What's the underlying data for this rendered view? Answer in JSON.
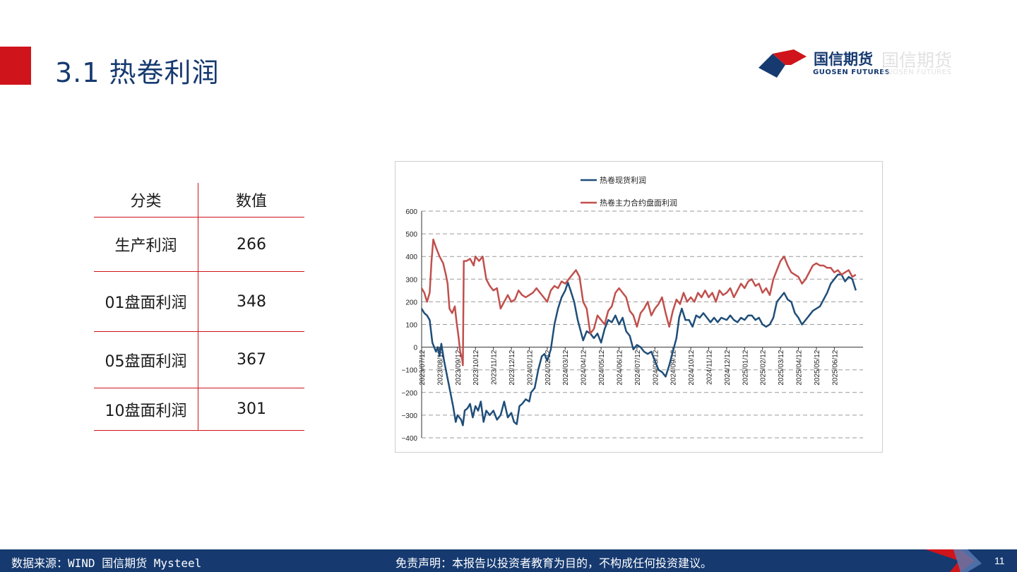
{
  "header": {
    "title": "3.1 热卷利润",
    "logo_cn": "国信期货",
    "logo_en": "GUOSEN FUTURES",
    "brand_red": "#d0141b",
    "brand_blue": "#163a70"
  },
  "table": {
    "headers": [
      "分类",
      "数值"
    ],
    "rows": [
      {
        "label": "生产利润",
        "value": "266"
      },
      {
        "label": "01盘面利润",
        "value": "348"
      },
      {
        "label": "05盘面利润",
        "value": "367"
      },
      {
        "label": "10盘面利润",
        "value": "301"
      }
    ]
  },
  "chart_data": {
    "type": "line",
    "title": "",
    "ylim": [
      -400,
      600
    ],
    "yticks": [
      600,
      500,
      400,
      300,
      200,
      100,
      0,
      -100,
      -200,
      -300,
      -400
    ],
    "ytick_labels": [
      "600",
      "500",
      "400",
      "300",
      "200",
      "100",
      "0",
      "−100",
      "−200",
      "−300",
      "−400"
    ],
    "x_labels": [
      "2023/07/12",
      "2023/08/12",
      "2023/09/12",
      "2023/10/12",
      "2023/11/12",
      "2023/12/12",
      "2024/01/12",
      "2024/02/12",
      "2024/03/12",
      "2024/04/12",
      "2024/05/12",
      "2024/06/12",
      "2024/07/12",
      "2024/08/12",
      "2024/09/12",
      "2024/10/12",
      "2024/11/12",
      "2024/12/12",
      "2025/01/12",
      "2025/02/12",
      "2025/03/12",
      "2025/04/12",
      "2025/05/12",
      "2025/06/12"
    ],
    "grid": "horizontal dashed",
    "legend_position": "top",
    "x_end": 24.6,
    "series": [
      {
        "name": "热卷现货利润",
        "color": "#1f4e79",
        "points": [
          [
            0,
            170
          ],
          [
            0.15,
            150
          ],
          [
            0.3,
            140
          ],
          [
            0.45,
            120
          ],
          [
            0.6,
            20
          ],
          [
            0.8,
            -20
          ],
          [
            0.9,
            0
          ],
          [
            1.0,
            -40
          ],
          [
            1.1,
            15
          ],
          [
            1.25,
            -60
          ],
          [
            1.4,
            -120
          ],
          [
            1.6,
            -200
          ],
          [
            1.75,
            -260
          ],
          [
            1.9,
            -330
          ],
          [
            2.0,
            -300
          ],
          [
            2.2,
            -320
          ],
          [
            2.3,
            -345
          ],
          [
            2.4,
            -280
          ],
          [
            2.55,
            -270
          ],
          [
            2.7,
            -250
          ],
          [
            2.85,
            -310
          ],
          [
            3.0,
            -260
          ],
          [
            3.15,
            -280
          ],
          [
            3.3,
            -240
          ],
          [
            3.45,
            -330
          ],
          [
            3.6,
            -280
          ],
          [
            3.8,
            -300
          ],
          [
            4.0,
            -280
          ],
          [
            4.2,
            -320
          ],
          [
            4.4,
            -300
          ],
          [
            4.6,
            -240
          ],
          [
            4.8,
            -310
          ],
          [
            5.0,
            -290
          ],
          [
            5.15,
            -330
          ],
          [
            5.3,
            -340
          ],
          [
            5.45,
            -260
          ],
          [
            5.6,
            -250
          ],
          [
            5.8,
            -230
          ],
          [
            6.0,
            -240
          ],
          [
            6.1,
            -200
          ],
          [
            6.3,
            -180
          ],
          [
            6.5,
            -100
          ],
          [
            6.7,
            -40
          ],
          [
            6.85,
            -30
          ],
          [
            7.0,
            -60
          ],
          [
            7.2,
            -10
          ],
          [
            7.4,
            100
          ],
          [
            7.6,
            170
          ],
          [
            7.8,
            220
          ],
          [
            8.0,
            250
          ],
          [
            8.15,
            285
          ],
          [
            8.3,
            250
          ],
          [
            8.5,
            200
          ],
          [
            8.7,
            120
          ],
          [
            8.9,
            60
          ],
          [
            9.0,
            30
          ],
          [
            9.2,
            70
          ],
          [
            9.4,
            60
          ],
          [
            9.6,
            40
          ],
          [
            9.8,
            60
          ],
          [
            10.0,
            20
          ],
          [
            10.2,
            80
          ],
          [
            10.4,
            120
          ],
          [
            10.6,
            110
          ],
          [
            10.8,
            140
          ],
          [
            11.0,
            100
          ],
          [
            11.2,
            130
          ],
          [
            11.4,
            70
          ],
          [
            11.6,
            50
          ],
          [
            11.8,
            -10
          ],
          [
            12.0,
            10
          ],
          [
            12.2,
            0
          ],
          [
            12.4,
            -20
          ],
          [
            12.6,
            -30
          ],
          [
            12.8,
            -20
          ],
          [
            13.0,
            -60
          ],
          [
            13.2,
            -100
          ],
          [
            13.4,
            -110
          ],
          [
            13.6,
            -130
          ],
          [
            13.8,
            -80
          ],
          [
            14.0,
            -20
          ],
          [
            14.2,
            40
          ],
          [
            14.35,
            130
          ],
          [
            14.5,
            170
          ],
          [
            14.7,
            120
          ],
          [
            14.9,
            120
          ],
          [
            15.1,
            90
          ],
          [
            15.3,
            140
          ],
          [
            15.5,
            130
          ],
          [
            15.7,
            150
          ],
          [
            15.9,
            130
          ],
          [
            16.1,
            110
          ],
          [
            16.3,
            130
          ],
          [
            16.5,
            110
          ],
          [
            16.7,
            130
          ],
          [
            17.0,
            120
          ],
          [
            17.2,
            140
          ],
          [
            17.4,
            120
          ],
          [
            17.6,
            110
          ],
          [
            17.8,
            130
          ],
          [
            18.0,
            120
          ],
          [
            18.2,
            140
          ],
          [
            18.4,
            140
          ],
          [
            18.6,
            120
          ],
          [
            18.8,
            130
          ],
          [
            19.0,
            100
          ],
          [
            19.2,
            90
          ],
          [
            19.4,
            100
          ],
          [
            19.6,
            130
          ],
          [
            19.8,
            200
          ],
          [
            20.0,
            220
          ],
          [
            20.2,
            240
          ],
          [
            20.4,
            210
          ],
          [
            20.6,
            200
          ],
          [
            20.8,
            150
          ],
          [
            21.0,
            130
          ],
          [
            21.2,
            100
          ],
          [
            21.4,
            120
          ],
          [
            21.6,
            140
          ],
          [
            21.8,
            160
          ],
          [
            22.0,
            170
          ],
          [
            22.2,
            180
          ],
          [
            22.4,
            210
          ],
          [
            22.6,
            240
          ],
          [
            22.8,
            280
          ],
          [
            23.0,
            300
          ],
          [
            23.2,
            320
          ],
          [
            23.4,
            320
          ],
          [
            23.6,
            290
          ],
          [
            23.8,
            310
          ],
          [
            24.0,
            300
          ],
          [
            24.2,
            250
          ]
        ]
      },
      {
        "name": "热卷主力合约盘面利润",
        "color": "#c0504d",
        "points": [
          [
            0,
            260
          ],
          [
            0.15,
            240
          ],
          [
            0.3,
            200
          ],
          [
            0.45,
            240
          ],
          [
            0.55,
            380
          ],
          [
            0.65,
            475
          ],
          [
            0.8,
            440
          ],
          [
            1.0,
            400
          ],
          [
            1.2,
            370
          ],
          [
            1.35,
            320
          ],
          [
            1.45,
            280
          ],
          [
            1.55,
            170
          ],
          [
            1.7,
            150
          ],
          [
            1.85,
            180
          ],
          [
            1.95,
            110
          ],
          [
            2.05,
            50
          ],
          [
            2.15,
            -20
          ],
          [
            2.25,
            -50
          ],
          [
            2.3,
            -80
          ],
          [
            2.35,
            380
          ],
          [
            2.5,
            380
          ],
          [
            2.7,
            390
          ],
          [
            2.9,
            360
          ],
          [
            3.0,
            400
          ],
          [
            3.2,
            380
          ],
          [
            3.4,
            400
          ],
          [
            3.6,
            300
          ],
          [
            3.8,
            270
          ],
          [
            4.0,
            250
          ],
          [
            4.2,
            260
          ],
          [
            4.4,
            170
          ],
          [
            4.6,
            200
          ],
          [
            4.8,
            230
          ],
          [
            5.0,
            200
          ],
          [
            5.2,
            210
          ],
          [
            5.4,
            250
          ],
          [
            5.6,
            230
          ],
          [
            5.8,
            220
          ],
          [
            6.0,
            230
          ],
          [
            6.2,
            240
          ],
          [
            6.4,
            260
          ],
          [
            6.6,
            240
          ],
          [
            6.8,
            220
          ],
          [
            7.0,
            200
          ],
          [
            7.2,
            250
          ],
          [
            7.4,
            270
          ],
          [
            7.6,
            260
          ],
          [
            7.8,
            290
          ],
          [
            8.0,
            280
          ],
          [
            8.2,
            300
          ],
          [
            8.4,
            320
          ],
          [
            8.6,
            340
          ],
          [
            8.8,
            310
          ],
          [
            9.0,
            200
          ],
          [
            9.2,
            170
          ],
          [
            9.4,
            60
          ],
          [
            9.6,
            80
          ],
          [
            9.8,
            140
          ],
          [
            10.0,
            120
          ],
          [
            10.2,
            100
          ],
          [
            10.4,
            160
          ],
          [
            10.6,
            180
          ],
          [
            10.8,
            240
          ],
          [
            11.0,
            260
          ],
          [
            11.2,
            240
          ],
          [
            11.4,
            220
          ],
          [
            11.6,
            160
          ],
          [
            11.8,
            140
          ],
          [
            12.0,
            90
          ],
          [
            12.2,
            150
          ],
          [
            12.4,
            170
          ],
          [
            12.6,
            200
          ],
          [
            12.8,
            140
          ],
          [
            13.0,
            170
          ],
          [
            13.2,
            190
          ],
          [
            13.4,
            220
          ],
          [
            13.6,
            150
          ],
          [
            13.8,
            90
          ],
          [
            14.0,
            160
          ],
          [
            14.2,
            210
          ],
          [
            14.4,
            190
          ],
          [
            14.6,
            240
          ],
          [
            14.8,
            200
          ],
          [
            15.0,
            220
          ],
          [
            15.2,
            200
          ],
          [
            15.4,
            240
          ],
          [
            15.6,
            220
          ],
          [
            15.8,
            250
          ],
          [
            16.0,
            220
          ],
          [
            16.2,
            240
          ],
          [
            16.4,
            200
          ],
          [
            16.6,
            250
          ],
          [
            16.8,
            230
          ],
          [
            17.0,
            240
          ],
          [
            17.2,
            260
          ],
          [
            17.4,
            220
          ],
          [
            17.6,
            250
          ],
          [
            17.8,
            280
          ],
          [
            18.0,
            260
          ],
          [
            18.2,
            290
          ],
          [
            18.4,
            300
          ],
          [
            18.6,
            270
          ],
          [
            18.8,
            280
          ],
          [
            19.0,
            240
          ],
          [
            19.2,
            260
          ],
          [
            19.4,
            230
          ],
          [
            19.6,
            300
          ],
          [
            19.8,
            340
          ],
          [
            20.0,
            380
          ],
          [
            20.2,
            400
          ],
          [
            20.4,
            360
          ],
          [
            20.6,
            330
          ],
          [
            20.8,
            320
          ],
          [
            21.0,
            310
          ],
          [
            21.2,
            280
          ],
          [
            21.4,
            300
          ],
          [
            21.6,
            330
          ],
          [
            21.8,
            360
          ],
          [
            22.0,
            370
          ],
          [
            22.2,
            360
          ],
          [
            22.4,
            360
          ],
          [
            22.6,
            350
          ],
          [
            22.8,
            350
          ],
          [
            23.0,
            330
          ],
          [
            23.2,
            340
          ],
          [
            23.4,
            320
          ],
          [
            23.6,
            330
          ],
          [
            23.8,
            340
          ],
          [
            24.0,
            310
          ],
          [
            24.2,
            320
          ]
        ]
      }
    ]
  },
  "footer": {
    "source": "数据来源：WIND 国信期货 Mysteel",
    "disclaimer": "免责声明：本报告以投资者教育为目的，不构成任何投资建议。",
    "page": "11"
  }
}
